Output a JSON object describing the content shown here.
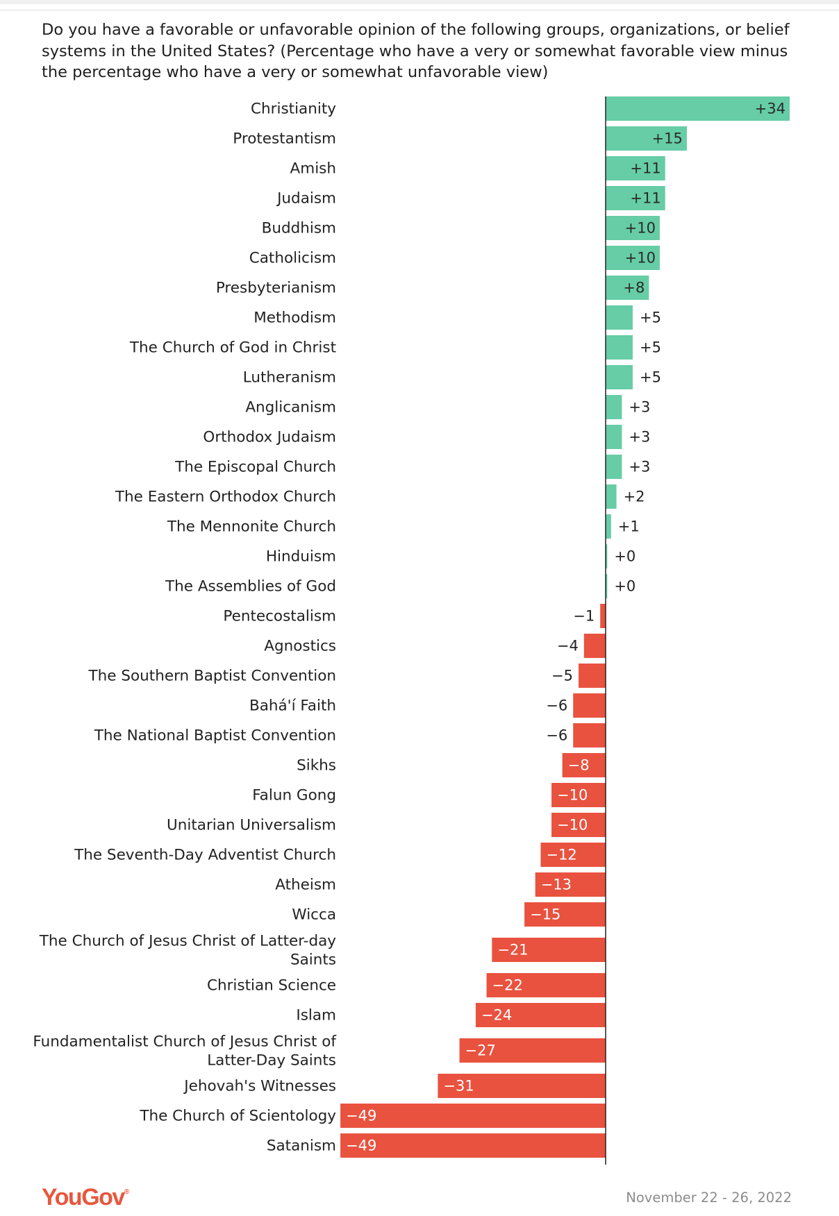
{
  "question": "Do you have a favorable or unfavorable opinion of the following groups, organizations, or belief systems in the United States? (Percentage who have a very or somewhat favorable view minus the percentage who have a very or somewhat unfavorable view)",
  "footer": {
    "logo": "YouGov",
    "date": "November 22 - 26, 2022"
  },
  "colors": {
    "positive": "#66cda6",
    "negative": "#e8523f",
    "axis": "#222222",
    "brand": "#e8573e"
  },
  "chart_data": {
    "type": "bar",
    "orientation": "horizontal",
    "categories": [
      "Christianity",
      "Protestantism",
      "Amish",
      "Judaism",
      "Buddhism",
      "Catholicism",
      "Presbyterianism",
      "Methodism",
      "The Church of God in Christ",
      "Lutheranism",
      "Anglicanism",
      "Orthodox Judaism",
      "The Episcopal Church",
      "The Eastern Orthodox Church",
      "The Mennonite Church",
      "Hinduism",
      "The Assemblies of God",
      "Pentecostalism",
      "Agnostics",
      "The Southern Baptist Convention",
      "Bahá'í Faith",
      "The National Baptist Convention",
      "Sikhs",
      "Falun Gong",
      "Unitarian Universalism",
      "The Seventh-Day Adventist Church",
      "Atheism",
      "Wicca",
      "The Church of Jesus Christ of Latter-day Saints",
      "Christian Science",
      "Islam",
      "Fundamentalist Church of Jesus Christ of Latter-Day Saints",
      "Jehovah's Witnesses",
      "The Church of Scientology",
      "Satanism"
    ],
    "category_lines": [
      [
        "Christianity"
      ],
      [
        "Protestantism"
      ],
      [
        "Amish"
      ],
      [
        "Judaism"
      ],
      [
        "Buddhism"
      ],
      [
        "Catholicism"
      ],
      [
        "Presbyterianism"
      ],
      [
        "Methodism"
      ],
      [
        "The Church of God in Christ"
      ],
      [
        "Lutheranism"
      ],
      [
        "Anglicanism"
      ],
      [
        "Orthodox Judaism"
      ],
      [
        "The Episcopal Church"
      ],
      [
        "The Eastern Orthodox Church"
      ],
      [
        "The Mennonite Church"
      ],
      [
        "Hinduism"
      ],
      [
        "The Assemblies of God"
      ],
      [
        "Pentecostalism"
      ],
      [
        "Agnostics"
      ],
      [
        "The Southern Baptist Convention"
      ],
      [
        "Bahá'í Faith"
      ],
      [
        "The National Baptist Convention"
      ],
      [
        "Sikhs"
      ],
      [
        "Falun Gong"
      ],
      [
        "Unitarian Universalism"
      ],
      [
        "The Seventh-Day Adventist Church"
      ],
      [
        "Atheism"
      ],
      [
        "Wicca"
      ],
      [
        "The Church of Jesus Christ of Latter-day",
        "Saints"
      ],
      [
        "Christian Science"
      ],
      [
        "Islam"
      ],
      [
        "Fundamentalist Church of Jesus Christ of",
        "Latter-Day Saints"
      ],
      [
        "Jehovah's Witnesses"
      ],
      [
        "The Church of Scientology"
      ],
      [
        "Satanism"
      ]
    ],
    "values": [
      34,
      15,
      11,
      11,
      10,
      10,
      8,
      5,
      5,
      5,
      3,
      3,
      3,
      2,
      1,
      0.3,
      0.3,
      -1,
      -4,
      -5,
      -6,
      -6,
      -8,
      -10,
      -10,
      -12,
      -13,
      -15,
      -21,
      -22,
      -24,
      -27,
      -31,
      -49,
      -49
    ],
    "labels": [
      "+34",
      "+15",
      "+11",
      "+11",
      "+10",
      "+10",
      "+8",
      "+5",
      "+5",
      "+5",
      "+3",
      "+3",
      "+3",
      "+2",
      "+1",
      "+0",
      "+0",
      "−1",
      "−4",
      "−5",
      "−6",
      "−6",
      "−8",
      "−10",
      "−10",
      "−12",
      "−13",
      "−15",
      "−21",
      "−22",
      "−24",
      "−27",
      "−31",
      "−49",
      "−49"
    ],
    "xlim": [
      -49,
      34
    ],
    "title": "",
    "xlabel": "",
    "ylabel": "",
    "grid": false,
    "legend": "none"
  }
}
